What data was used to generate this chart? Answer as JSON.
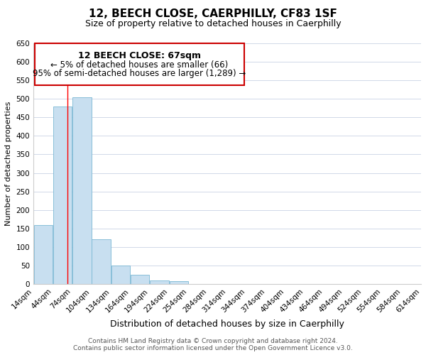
{
  "title": "12, BEECH CLOSE, CAERPHILLY, CF83 1SF",
  "subtitle": "Size of property relative to detached houses in Caerphilly",
  "xlabel": "Distribution of detached houses by size in Caerphilly",
  "ylabel": "Number of detached properties",
  "bin_edges": [
    14,
    44,
    74,
    104,
    134,
    164,
    194,
    224,
    254,
    284,
    314,
    344,
    374,
    404,
    434,
    464,
    494,
    524,
    554,
    584,
    614
  ],
  "bar_heights": [
    160,
    480,
    505,
    120,
    50,
    25,
    10,
    8,
    0,
    0,
    0,
    0,
    0,
    0,
    0,
    0,
    0,
    0,
    0,
    0
  ],
  "bar_color": "#c8dff0",
  "bar_edge_color": "#7ab8d4",
  "grid_color": "#d0d8e8",
  "red_line_x": 67,
  "ylim": [
    0,
    650
  ],
  "yticks": [
    0,
    50,
    100,
    150,
    200,
    250,
    300,
    350,
    400,
    450,
    500,
    550,
    600,
    650
  ],
  "annotation_title": "12 BEECH CLOSE: 67sqm",
  "annotation_line1": "← 5% of detached houses are smaller (66)",
  "annotation_line2": "95% of semi-detached houses are larger (1,289) →",
  "annotation_box_color": "#ffffff",
  "annotation_border_color": "#cc0000",
  "footer_line1": "Contains HM Land Registry data © Crown copyright and database right 2024.",
  "footer_line2": "Contains public sector information licensed under the Open Government Licence v3.0.",
  "title_fontsize": 11,
  "subtitle_fontsize": 9,
  "xlabel_fontsize": 9,
  "ylabel_fontsize": 8,
  "tick_fontsize": 7.5,
  "annotation_title_fontsize": 9,
  "annotation_text_fontsize": 8.5,
  "footer_fontsize": 6.5,
  "background_color": "#ffffff"
}
